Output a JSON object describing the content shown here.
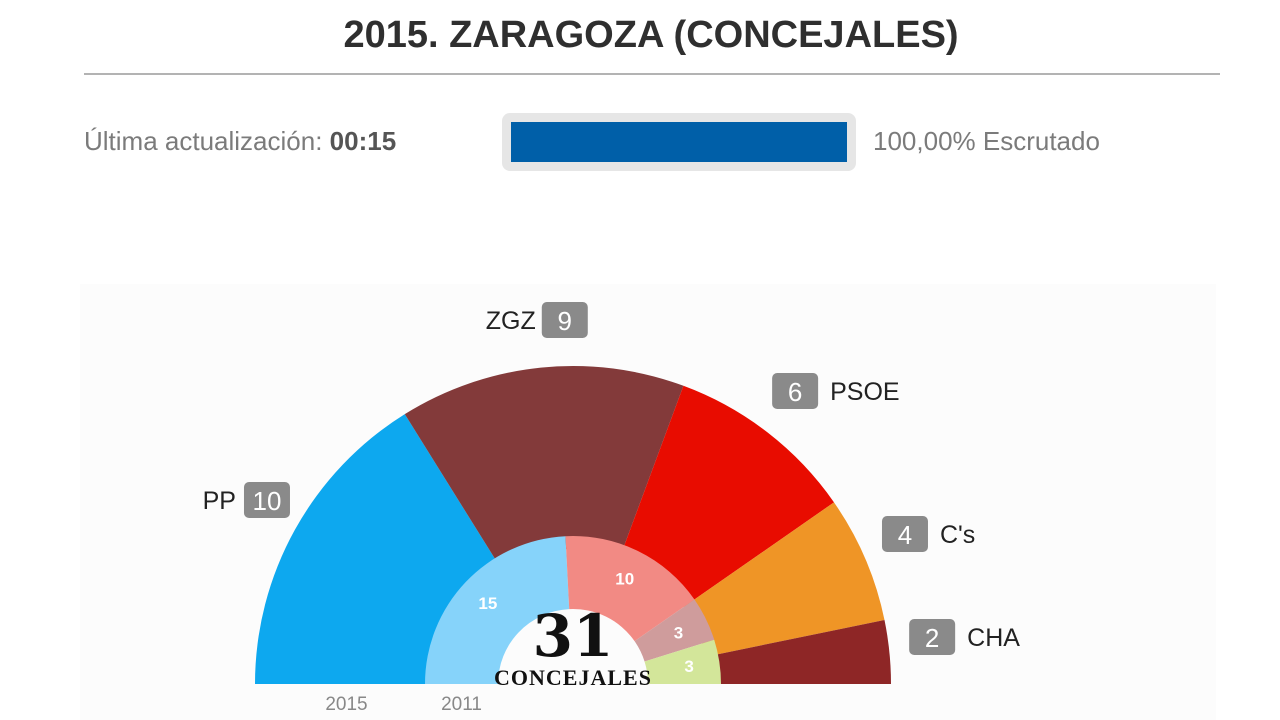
{
  "header": {
    "title": "2015. ZARAGOZA (CONCEJALES)"
  },
  "status": {
    "update_label": "Última actualización:",
    "update_time": "00:15",
    "progress_fraction": 1.0,
    "progress_text": "100,00% Escrutado"
  },
  "colors": {
    "progress": "#005fa8",
    "badge": "#8a8a8a"
  },
  "chart_data": {
    "type": "pie",
    "subtype": "parliament-semicircle",
    "center_total": "31",
    "center_label": "CONCEJALES",
    "series": [
      {
        "name": "2015",
        "slices": [
          {
            "label": "PP",
            "value": 10,
            "color": "#0da8ef"
          },
          {
            "label": "ZGZ",
            "value": 9,
            "color": "#833a3a"
          },
          {
            "label": "PSOE",
            "value": 6,
            "color": "#e80c00"
          },
          {
            "label": "C's",
            "value": 4,
            "color": "#ef9526"
          },
          {
            "label": "CHA",
            "value": 2,
            "color": "#8e2626"
          }
        ]
      },
      {
        "name": "2011",
        "slices": [
          {
            "label": "",
            "value": 15,
            "color": "#86d3fa",
            "display": "15"
          },
          {
            "label": "",
            "value": 10,
            "color": "#f28a84",
            "display": "10"
          },
          {
            "label": "",
            "value": 3,
            "color": "#cf9c9c",
            "display": "3"
          },
          {
            "label": "",
            "value": 3,
            "color": "#d3e69a",
            "display": "3"
          }
        ]
      }
    ]
  }
}
